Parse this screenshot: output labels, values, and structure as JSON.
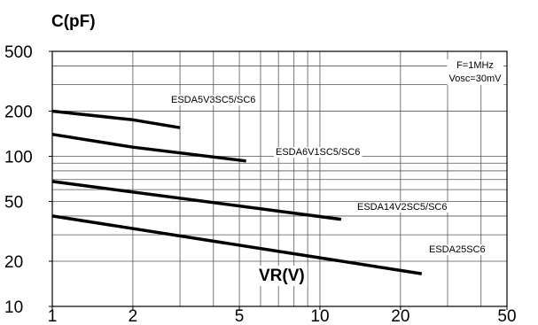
{
  "chart_data": {
    "type": "line",
    "title": "",
    "ylabel": "C(pF)",
    "xlabel": "VR(V)",
    "x_scale": "log",
    "y_scale": "log",
    "xlim": [
      1,
      50
    ],
    "ylim": [
      10,
      500
    ],
    "x_ticks": [
      "1",
      "2",
      "5",
      "10",
      "20",
      "50"
    ],
    "y_ticks": [
      "10",
      "20",
      "50",
      "100",
      "200",
      "500"
    ],
    "grid": true,
    "annotations": [
      "F=1MHz",
      "Vosc=30mV"
    ],
    "series": [
      {
        "name": "ESDA5V3SC5/SC6",
        "x": [
          1,
          2,
          3
        ],
        "y": [
          200,
          175,
          155
        ]
      },
      {
        "name": "ESDA6V1SC5/SC6",
        "x": [
          1,
          2,
          5.3
        ],
        "y": [
          140,
          115,
          93
        ]
      },
      {
        "name": "ESDA14V2SC5/SC6",
        "x": [
          1,
          12
        ],
        "y": [
          68,
          38
        ]
      },
      {
        "name": "ESDA25SC6",
        "x": [
          1,
          24
        ],
        "y": [
          40,
          16.5
        ]
      }
    ]
  }
}
